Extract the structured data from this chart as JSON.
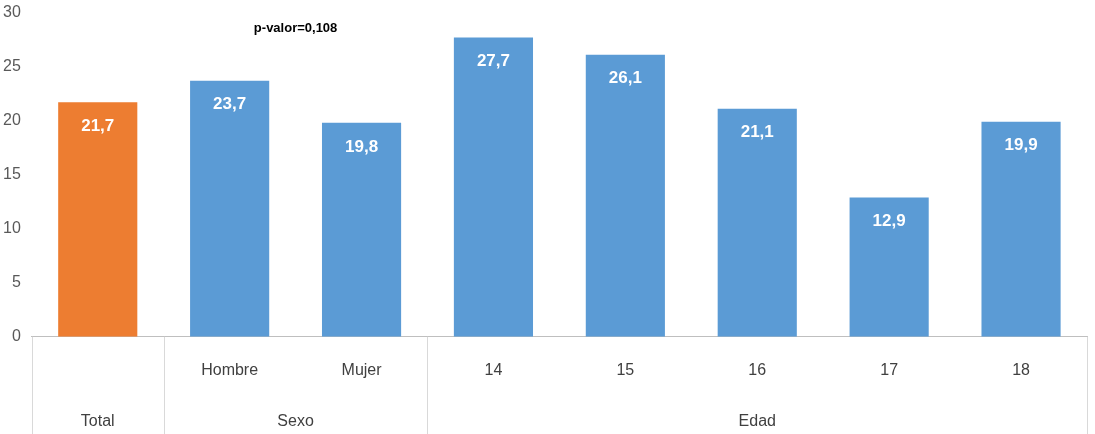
{
  "chart_data": {
    "type": "bar",
    "categories": [
      null,
      "Hombre",
      "Mujer",
      "14",
      "15",
      "16",
      "17",
      "18"
    ],
    "values": [
      21.7,
      23.7,
      19.8,
      27.7,
      26.1,
      21.1,
      12.9,
      19.9
    ],
    "colors": [
      "#ed7d31",
      "#5b9bd5",
      "#5b9bd5",
      "#5b9bd5",
      "#5b9bd5",
      "#5b9bd5",
      "#5b9bd5",
      "#5b9bd5"
    ],
    "ylim": [
      0,
      30
    ],
    "yticks": [
      0,
      5,
      10,
      15,
      20,
      25,
      30
    ],
    "grid": false,
    "legend": false,
    "value_labels": [
      "21,7",
      "23,7",
      "19,8",
      "27,7",
      "26,1",
      "21,1",
      "12,9",
      "19,9"
    ],
    "annotations": [
      "p-valor=0,108",
      "Total",
      "Sexo",
      "Edad"
    ]
  }
}
